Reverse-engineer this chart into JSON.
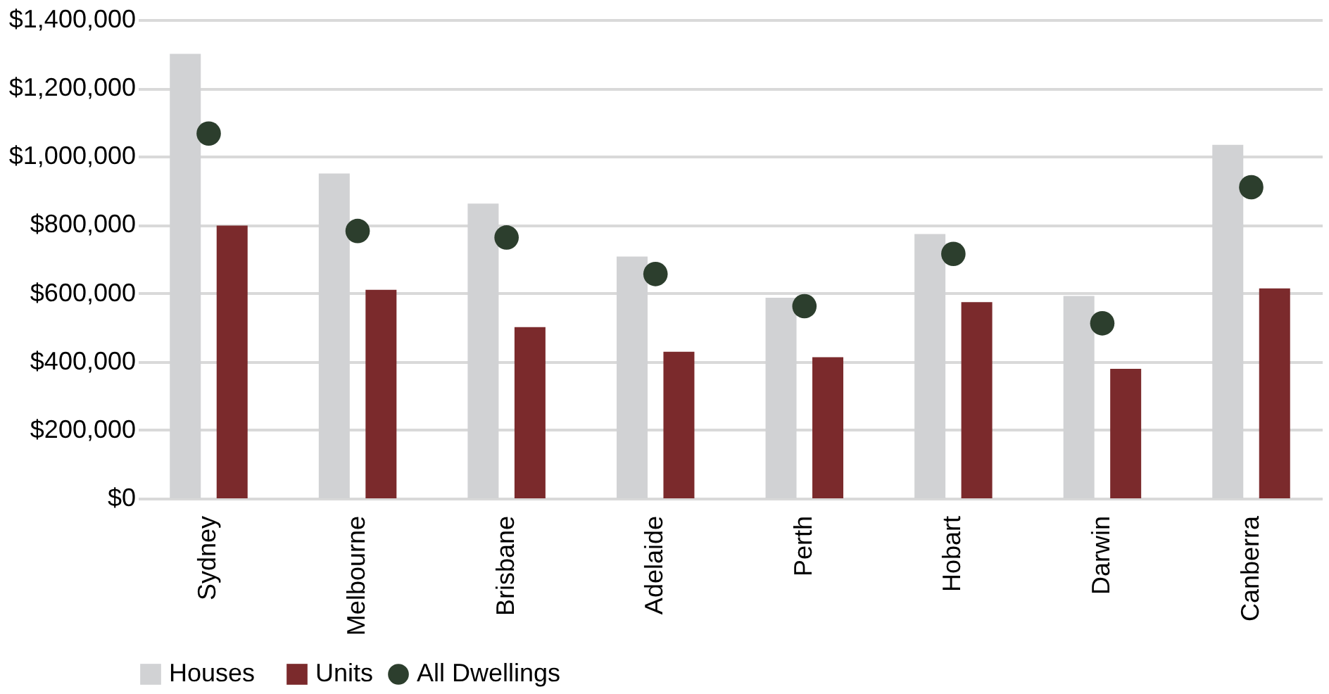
{
  "chart_data": {
    "type": "bar",
    "categories": [
      "Sydney",
      "Melbourne",
      "Brisbane",
      "Adelaide",
      "Perth",
      "Hobart",
      "Darwin",
      "Canberra"
    ],
    "series": [
      {
        "name": "Houses",
        "color": "#d1d2d4",
        "values": [
          1300000,
          950000,
          862000,
          707000,
          587000,
          773000,
          592000,
          1034000
        ]
      },
      {
        "name": "Units",
        "color": "#7b2a2c",
        "values": [
          798000,
          610000,
          501000,
          429000,
          413000,
          574000,
          379000,
          614000
        ]
      },
      {
        "name": "All Dwellings",
        "type": "scatter",
        "marker": "circle",
        "color": "#2c3e2d",
        "values": [
          1067000,
          782000,
          763000,
          656000,
          562000,
          715000,
          512000,
          910000
        ]
      }
    ],
    "ylim": [
      0,
      1400000
    ],
    "yticks": [
      {
        "value": 0,
        "label": "$0"
      },
      {
        "value": 200000,
        "label": "$200,000"
      },
      {
        "value": 400000,
        "label": "$400,000"
      },
      {
        "value": 600000,
        "label": "$600,000"
      },
      {
        "value": 800000,
        "label": "$800,000"
      },
      {
        "value": 1000000,
        "label": "$1,000,000"
      },
      {
        "value": 1200000,
        "label": "$1,200,000"
      },
      {
        "value": 1400000,
        "label": "$1,400,000"
      }
    ],
    "grid": "y",
    "legend": "bottom"
  }
}
